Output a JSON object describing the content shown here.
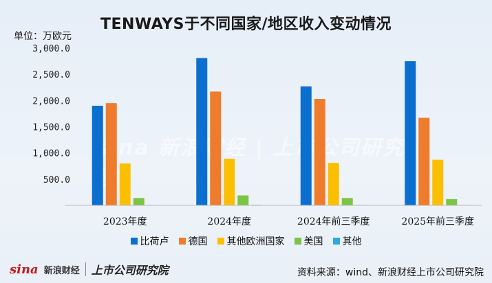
{
  "page": {
    "title": "TENWAYS于不同国家/地区收入变动情况",
    "unit_label": "单位：万欧元",
    "source": "资料来源：wind、新浪财经上市公司研究院",
    "logo_brand": "sina",
    "logo_name": "新浪财经",
    "logo_institute": "上市公司研究院",
    "watermark": "sina 新浪财经 | 上市公司研究院"
  },
  "colors": {
    "比荷卢": "#0b6fd0",
    "德国": "#ef7b2d",
    "其他欧洲国家": "#fcbf00",
    "美国": "#7cc444",
    "其他": "#2fa8e0"
  },
  "chart_data": {
    "type": "bar",
    "title": "TENWAYS于不同国家/地区收入变动情况",
    "ylabel": "单位：万欧元",
    "xlabel": "",
    "ylim": [
      0,
      3000
    ],
    "yticks": [
      "",
      "500.0",
      "1,000.0",
      "1,500.0",
      "2,000.0",
      "2,500.0",
      "3,000.0"
    ],
    "categories": [
      "2023年度",
      "2024年度",
      "2024年前三季度",
      "2025年前三季度"
    ],
    "series": [
      {
        "name": "比荷卢",
        "values": [
          1900,
          2810,
          2270,
          2750
        ]
      },
      {
        "name": "德国",
        "values": [
          1950,
          2170,
          2030,
          1670
        ]
      },
      {
        "name": "其他欧洲国家",
        "values": [
          800,
          890,
          810,
          870
        ]
      },
      {
        "name": "美国",
        "values": [
          140,
          190,
          140,
          120
        ]
      },
      {
        "name": "其他",
        "values": [
          8,
          10,
          8,
          8
        ]
      }
    ],
    "grid": false,
    "legend_position": "bottom"
  }
}
